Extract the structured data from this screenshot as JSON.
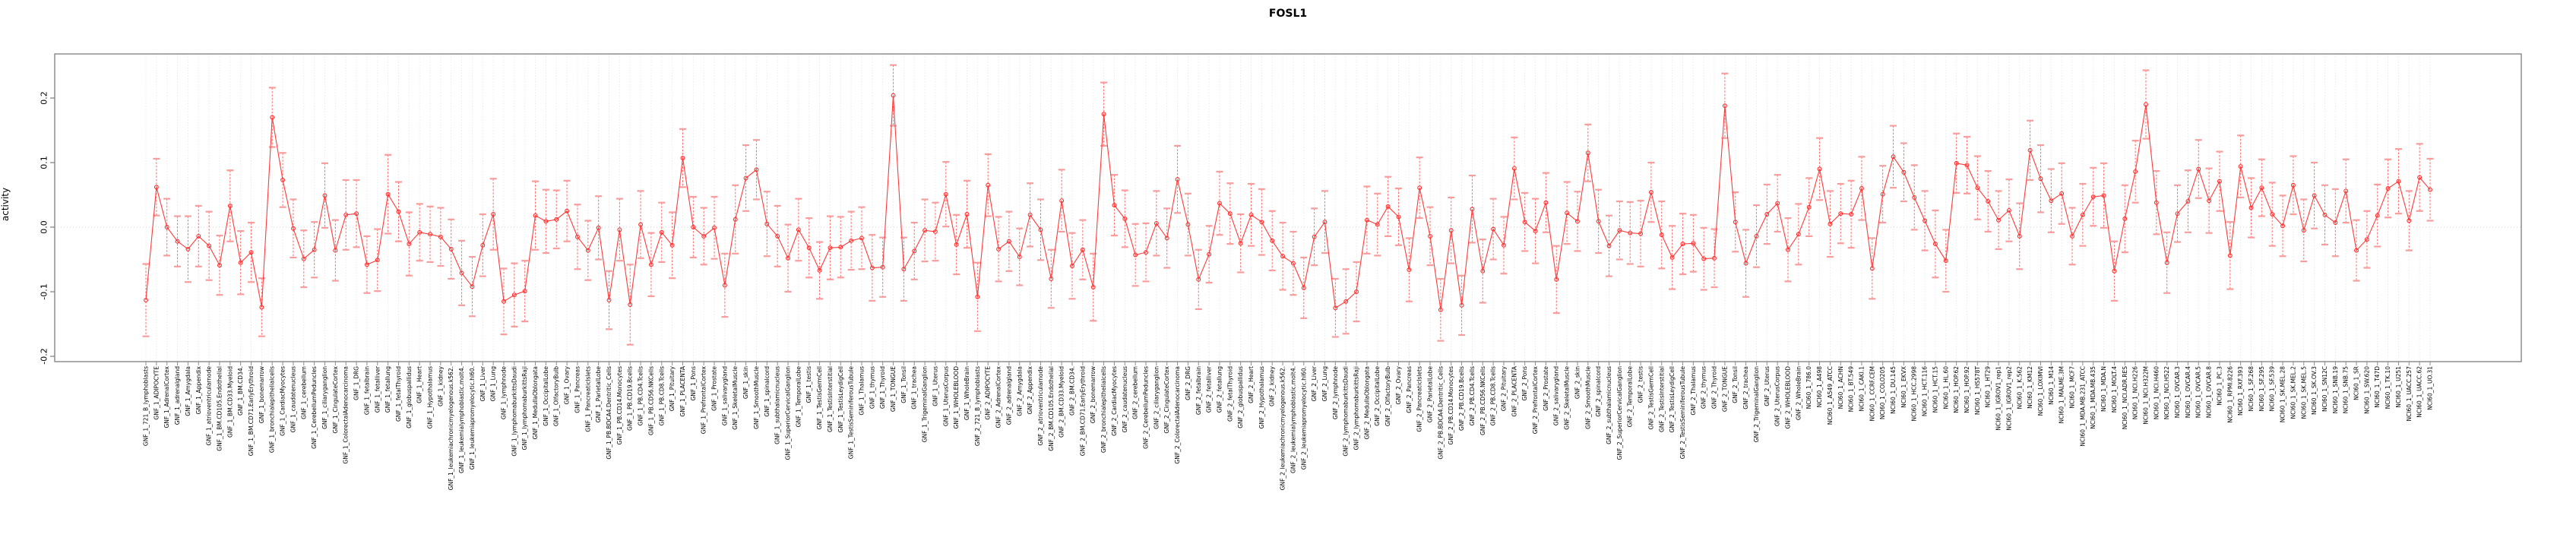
{
  "title": "FOSL1",
  "axes": {
    "ylabel": "activity",
    "ytick_labels": [
      "0.2",
      "0.1",
      "0.0",
      "-0.1",
      "-0.2"
    ],
    "ytick_values": [
      0.2,
      0.1,
      0.0,
      -0.1,
      -0.2
    ]
  },
  "colors": {
    "series_line": "#ff3b3b",
    "point_stroke": "#ff2d2d",
    "errorbar_cap": "#f89d9d",
    "errorbar_line": "#ff6a6a",
    "gridline": "#e0e0e0",
    "zero_line": "#d6d6d6",
    "plot_border": "#7d7d7d",
    "tick": "#8c8c8c",
    "text": "#000000"
  },
  "chart_data": {
    "type": "line",
    "title": "FOSL1",
    "xlabel": "",
    "ylabel": "activity",
    "ylim": [
      -0.208,
      0.268
    ],
    "grid": "dotted vertical line at every category; dotted horizontal line at 0",
    "legend": "none",
    "error_bars": true,
    "marker": "open-circle",
    "series_color": "red",
    "categories": [
      "GNF_1_721_B_lymphoblasts",
      "GNF_1_ADIPOCYTE",
      "GNF_1_AdrenalCortex",
      "GNF_1_adrenalgland",
      "GNF_1_Amygdala",
      "GNF_1_Appendix",
      "GNF_1_atrioventricularnode",
      "GNF_1_BM.CD105.Endothelial",
      "GNF_1_BM.CD33.Myeloid",
      "GNF_1_BM.CD34.",
      "GNF_1_BM.CD71.EarlyErythroid",
      "GNF_1_bonemarrow",
      "GNF_1_bronchialepithelialcells",
      "GNF_1_CardiacMyocytes",
      "GNF_1_caudatenucleus",
      "GNF_1_cerebellum",
      "GNF_1_CerebellumPeduncles",
      "GNF_1_ciliaryganglion",
      "GNF_1_CingulateCortex",
      "GNF_1_ColorectalAdenocarcinoma",
      "GNF_1_DRG",
      "GNF_1_fetalbrain",
      "GNF_1_fetalliver",
      "GNF_1_fetallung",
      "GNF_1_fetalThyroid",
      "GNF_1_globuspallidus",
      "GNF_1_Heart",
      "GNF_1_Hypothalamus",
      "GNF_1_kidney",
      "GNF_1_leukemiachronicmyelogenous.k562.",
      "GNF_1_leukemialymphoblastic.molt4.",
      "GNF_1_leukemiapromyelocytic.hl60.",
      "GNF_1_Liver",
      "GNF_1_Lung",
      "GNF_1_lymphnode",
      "GNF_1_lymphomaburkittsDaudi",
      "GNF_1_lymphomaburkittsRaji",
      "GNF_1_MedullaOblongata",
      "GNF_1_OccipitalLobe",
      "GNF_1_OlfactoryBulb",
      "GNF_1_Ovary",
      "GNF_1_Pancreas",
      "GNF_1_PancreaticIslets",
      "GNF_1_ParietalLobe",
      "GNF_1_PB.BDCA4.Dentritic_Cells",
      "GNF_1_PB.CD14.Monocytes",
      "GNF_1_PB.CD19.Bcells",
      "GNF_1_PB.CD4.Tcells",
      "GNF_1_PB.CD56.NKCells",
      "GNF_1_PB.CD8.Tcells",
      "GNF_1_Pituitary",
      "GNF_1_PLACENTA",
      "GNF_1_Pons",
      "GNF_1_PrefrontalCortex",
      "GNF_1_Prostate",
      "GNF_1_salivarygland",
      "GNF_1_SkeletalMuscle",
      "GNF_1_skin",
      "GNF_1_SmoothMuscle",
      "GNF_1_spinalcord",
      "GNF_1_subthalamicnucleus",
      "GNF_1_SuperiorCervicalGanglion",
      "GNF_1_TemporalLobe",
      "GNF_1_testis",
      "GNF_1_TestisGermCell",
      "GNF_1_TestisInterstitial",
      "GNF_1_TestisLeydigCell",
      "GNF_1_TestisSeminiferousTubule",
      "GNF_1_Thalamus",
      "GNF_1_thymus",
      "GNF_1_Thyroid",
      "GNF_1_TONGUE",
      "GNF_1_Tonsil",
      "GNF_1_trachea",
      "GNF_1_TrigeminalGanglion",
      "GNF_1_Uterus",
      "GNF_1_UterusCorpus",
      "GNF_1_WHOLEBLOOD",
      "GNF_1_WholeBrain",
      "GNF_2_721_B_lymphoblasts",
      "GNF_2_ADIPOCYTE",
      "GNF_2_AdrenalCortex",
      "GNF_2_adrenalgland",
      "GNF_2_Amygdala",
      "GNF_2_Appendix",
      "GNF_2_atrioventricularnode",
      "GNF_2_BM.CD105.Endothelial",
      "GNF_2_BM.CD33.Myeloid",
      "GNF_2_BM.CD34.",
      "GNF_2_BM.CD71.EarlyErythroid",
      "GNF_2_bonemarrow",
      "GNF_2_bronchialepithelialcells",
      "GNF_2_CardiacMyocytes",
      "GNF_2_caudatenucleus",
      "GNF_2_cerebellum",
      "GNF_2_CerebellumPeduncles",
      "GNF_2_ciliaryganglion",
      "GNF_2_CingulateCortex",
      "GNF_2_ColorectalAdenocarcinoma",
      "GNF_2_DRG",
      "GNF_2_fetalbrain",
      "GNF_2_fetalliver",
      "GNF_2_fetallung",
      "GNF_2_fetalThyroid",
      "GNF_2_globuspallidus",
      "GNF_2_Heart",
      "GNF_2_Hypothalamus",
      "GNF_2_kidney",
      "GNF_2_leukemiachronicmyelogenous.k562.",
      "GNF_2_leukemialymphoblastic.molt4.",
      "GNF_2_leukemiapromyelocytic.hl60.",
      "GNF_2_Liver",
      "GNF_2_Lung",
      "GNF_2_lymphnode",
      "GNF_2_lymphomaburkittsDaudi",
      "GNF_2_lymphomaburkittsRaji",
      "GNF_2_MedullaOblongata",
      "GNF_2_OccipitalLobe",
      "GNF_2_OlfactoryBulb",
      "GNF_2_Ovary",
      "GNF_2_Pancreas",
      "GNF_2_PancreaticIslets",
      "GNF_2_ParietalLobe",
      "GNF_2_PB.BDCA4.Dentritic_Cells",
      "GNF_2_PB.CD14.Monocytes",
      "GNF_2_PB.CD19.Bcells",
      "GNF_2_PB.CD4.Tcells",
      "GNF_2_PB.CD56.NKCells",
      "GNF_2_PB.CD8.Tcells",
      "GNF_2_Pituitary",
      "GNF_2_PLACENTA",
      "GNF_2_Pons",
      "GNF_2_PrefrontalCortex",
      "GNF_2_Prostate",
      "GNF_2_salivarygland",
      "GNF_2_SkeletalMuscle",
      "GNF_2_skin",
      "GNF_2_SmoothMuscle",
      "GNF_2_spinalcord",
      "GNF_2_subthalamicnucleus",
      "GNF_2_SuperiorCervicalGanglion",
      "GNF_2_TemporalLobe",
      "GNF_2_testis",
      "GNF_2_TestisGermCell",
      "GNF_2_TestisInterstitial",
      "GNF_2_TestisLeydigCell",
      "GNF_2_TestisSeminiferousTubule",
      "GNF_2_Thalamus",
      "GNF_2_thymus",
      "GNF_2_Thyroid",
      "GNF_2_TONGUE",
      "GNF_2_Tonsil",
      "GNF_2_trachea",
      "GNF_2_TrigeminalGanglion",
      "GNF_2_Uterus",
      "GNF_2_UterusCorpus",
      "GNF_2_WHOLEBLOOD",
      "GNF_2_WholeBrain",
      "NCI60_1_786.0",
      "NCI60_1_A498",
      "NCI60_1_A549_ATCC",
      "NCI60_1_ACHN",
      "NCI60_1_BT.549",
      "NCI60_1_CAKI.1",
      "NCI60_1_CCRF.CEM",
      "NCI60_1_COLO205",
      "NCI60_1_DU.145",
      "NCI60_1_EKVX",
      "NCI60_1_HCC.2998",
      "NCI60_1_HCT.116",
      "NCI60_1_HCT.15",
      "NCI60_1_HL.60",
      "NCI60_1_HOP.62",
      "NCI60_1_HOP.92",
      "NCI60_1_HS578T",
      "NCI60_1_HT29",
      "NCI60_1_IGROV1_rep1",
      "NCI60_1_IGROV1_rep2",
      "NCI60_1_K.562",
      "NCI60_1_KM12",
      "NCI60_1_LOXIMVI",
      "NCI60_1_M14",
      "NCI60_1_MALME.3M",
      "NCI60_1_MCF7",
      "NCI60_1_MDA.MB.231_ATCC",
      "NCI60_1_MDA.MB.435",
      "NCI60_1_MDA.N",
      "NCI60_1_MOLT.4",
      "NCI60_1_NCI.ADR.RES",
      "NCI60_1_NCI.H226",
      "NCI60_1_NCI.H322M",
      "NCI60_1_NCI.H460",
      "NCI60_1_NCI.H522",
      "NCI60_1_OVCAR.3",
      "NCI60_1_OVCAR.4",
      "NCI60_1_OVCAR.5",
      "NCI60_1_OVCAR.8",
      "NCI60_1_PC.3",
      "NCI60_1_RPMI.8226",
      "NCI60_1_RXF.393",
      "NCI60_1_SF.268",
      "NCI60_1_SF.295",
      "NCI60_1_SF.539",
      "NCI60_1_SK.MEL.28",
      "NCI60_1_SK.MEL.2",
      "NCI60_1_SK.MEL.5",
      "NCI60_1_SK.OV.3",
      "NCI60_1_SN12C",
      "NCI60_1_SNB.19",
      "NCI60_1_SNB.75",
      "NCI60_1_SR",
      "NCI60_1_SW.620",
      "NCI60_1_T47D",
      "NCI60_1_TK.10",
      "NCI60_1_U251",
      "NCI60_1_UACC.257",
      "NCI60_1_UACC.62",
      "NCI60_1_UO.31"
    ],
    "values": [
      -0.113,
      0.062,
      0.0,
      -0.022,
      -0.034,
      -0.014,
      -0.029,
      -0.059,
      0.033,
      -0.055,
      -0.039,
      -0.124,
      0.17,
      0.073,
      -0.002,
      -0.049,
      -0.035,
      0.049,
      -0.036,
      0.019,
      0.021,
      -0.058,
      -0.051,
      0.051,
      0.024,
      -0.026,
      -0.008,
      -0.011,
      -0.015,
      -0.034,
      -0.071,
      -0.092,
      -0.028,
      0.02,
      -0.115,
      -0.105,
      -0.099,
      0.018,
      0.009,
      0.012,
      0.025,
      -0.015,
      -0.036,
      -0.001,
      -0.113,
      -0.004,
      -0.12,
      0.004,
      -0.058,
      -0.008,
      -0.028,
      0.107,
      0.0,
      -0.014,
      -0.001,
      -0.09,
      0.012,
      0.076,
      0.089,
      0.005,
      -0.014,
      -0.048,
      -0.004,
      -0.032,
      -0.067,
      -0.032,
      -0.031,
      -0.021,
      -0.017,
      -0.063,
      -0.062,
      0.204,
      -0.065,
      -0.037,
      -0.005,
      -0.007,
      0.051,
      -0.027,
      0.02,
      -0.108,
      0.065,
      -0.034,
      -0.022,
      -0.046,
      0.019,
      -0.004,
      -0.08,
      0.041,
      -0.06,
      -0.035,
      -0.093,
      0.175,
      0.034,
      0.013,
      -0.043,
      -0.039,
      0.006,
      -0.017,
      0.074,
      0.004,
      -0.081,
      -0.042,
      0.037,
      0.021,
      -0.025,
      0.019,
      0.008,
      -0.021,
      -0.045,
      -0.056,
      -0.094,
      -0.015,
      0.008,
      -0.125,
      -0.115,
      -0.1,
      0.011,
      0.004,
      0.032,
      0.016,
      -0.066,
      0.061,
      -0.014,
      -0.128,
      -0.005,
      -0.121,
      0.028,
      -0.068,
      -0.003,
      -0.028,
      0.091,
      0.008,
      -0.006,
      0.038,
      -0.081,
      0.022,
      0.009,
      0.115,
      0.009,
      -0.029,
      -0.005,
      -0.009,
      -0.01,
      0.054,
      -0.012,
      -0.047,
      -0.026,
      -0.025,
      -0.049,
      -0.048,
      0.188,
      0.008,
      -0.056,
      -0.014,
      0.02,
      0.037,
      -0.035,
      -0.011,
      0.031,
      0.09,
      0.005,
      0.021,
      0.02,
      0.06,
      -0.064,
      0.051,
      0.109,
      0.085,
      0.046,
      0.01,
      -0.026,
      -0.052,
      0.099,
      0.096,
      0.061,
      0.04,
      0.011,
      0.026,
      -0.014,
      0.119,
      0.075,
      0.041,
      0.052,
      -0.014,
      0.019,
      0.047,
      0.049,
      -0.068,
      0.013,
      0.086,
      0.19,
      0.038,
      -0.055,
      0.021,
      0.04,
      0.09,
      0.041,
      0.071,
      -0.044,
      0.094,
      0.03,
      0.061,
      0.02,
      0.002,
      0.065,
      -0.005,
      0.049,
      0.019,
      0.007,
      0.056,
      -0.036,
      -0.019,
      0.018,
      0.06,
      0.071,
      0.01,
      0.077,
      0.058
    ],
    "se": [
      0.056,
      0.044,
      0.044,
      0.039,
      0.051,
      0.047,
      0.053,
      0.046,
      0.055,
      0.049,
      0.046,
      0.045,
      0.046,
      0.042,
      0.045,
      0.044,
      0.043,
      0.05,
      0.047,
      0.054,
      0.052,
      0.044,
      0.048,
      0.061,
      0.046,
      0.049,
      0.044,
      0.043,
      0.045,
      0.046,
      0.05,
      0.046,
      0.048,
      0.055,
      0.051,
      0.049,
      0.047,
      0.053,
      0.049,
      0.045,
      0.047,
      0.05,
      0.046,
      0.049,
      0.045,
      0.048,
      0.062,
      0.052,
      0.049,
      0.046,
      0.051,
      0.045,
      0.047,
      0.044,
      0.048,
      0.049,
      0.053,
      0.051,
      0.046,
      0.05,
      0.047,
      0.052,
      0.048,
      0.046,
      0.044,
      0.049,
      0.047,
      0.045,
      0.048,
      0.051,
      0.046,
      0.047,
      0.049,
      0.044,
      0.048,
      0.045,
      0.05,
      0.046,
      0.052,
      0.053,
      0.048,
      0.05,
      0.046,
      0.044,
      0.049,
      0.047,
      0.045,
      0.048,
      0.051,
      0.046,
      0.052,
      0.049,
      0.047,
      0.044,
      0.048,
      0.045,
      0.05,
      0.046,
      0.052,
      0.048,
      0.046,
      0.044,
      0.049,
      0.047,
      0.045,
      0.048,
      0.051,
      0.046,
      0.052,
      0.049,
      0.047,
      0.044,
      0.048,
      0.045,
      0.05,
      0.046,
      0.052,
      0.048,
      0.046,
      0.044,
      0.049,
      0.047,
      0.045,
      0.048,
      0.051,
      0.046,
      0.052,
      0.049,
      0.047,
      0.044,
      0.048,
      0.045,
      0.05,
      0.046,
      0.052,
      0.048,
      0.046,
      0.044,
      0.049,
      0.047,
      0.045,
      0.048,
      0.051,
      0.046,
      0.052,
      0.049,
      0.047,
      0.044,
      0.048,
      0.045,
      0.05,
      0.046,
      0.052,
      0.048,
      0.046,
      0.044,
      0.049,
      0.047,
      0.045,
      0.048,
      0.051,
      0.046,
      0.052,
      0.049,
      0.047,
      0.044,
      0.048,
      0.045,
      0.05,
      0.046,
      0.052,
      0.048,
      0.046,
      0.044,
      0.049,
      0.047,
      0.045,
      0.048,
      0.051,
      0.046,
      0.052,
      0.049,
      0.047,
      0.044,
      0.048,
      0.045,
      0.05,
      0.046,
      0.052,
      0.048,
      0.053,
      0.049,
      0.047,
      0.044,
      0.048,
      0.045,
      0.05,
      0.046,
      0.052,
      0.048,
      0.046,
      0.044,
      0.049,
      0.047,
      0.045,
      0.048,
      0.051,
      0.046,
      0.052,
      0.049,
      0.047,
      0.044,
      0.048,
      0.045,
      0.05,
      0.046,
      0.052,
      0.048
    ]
  }
}
